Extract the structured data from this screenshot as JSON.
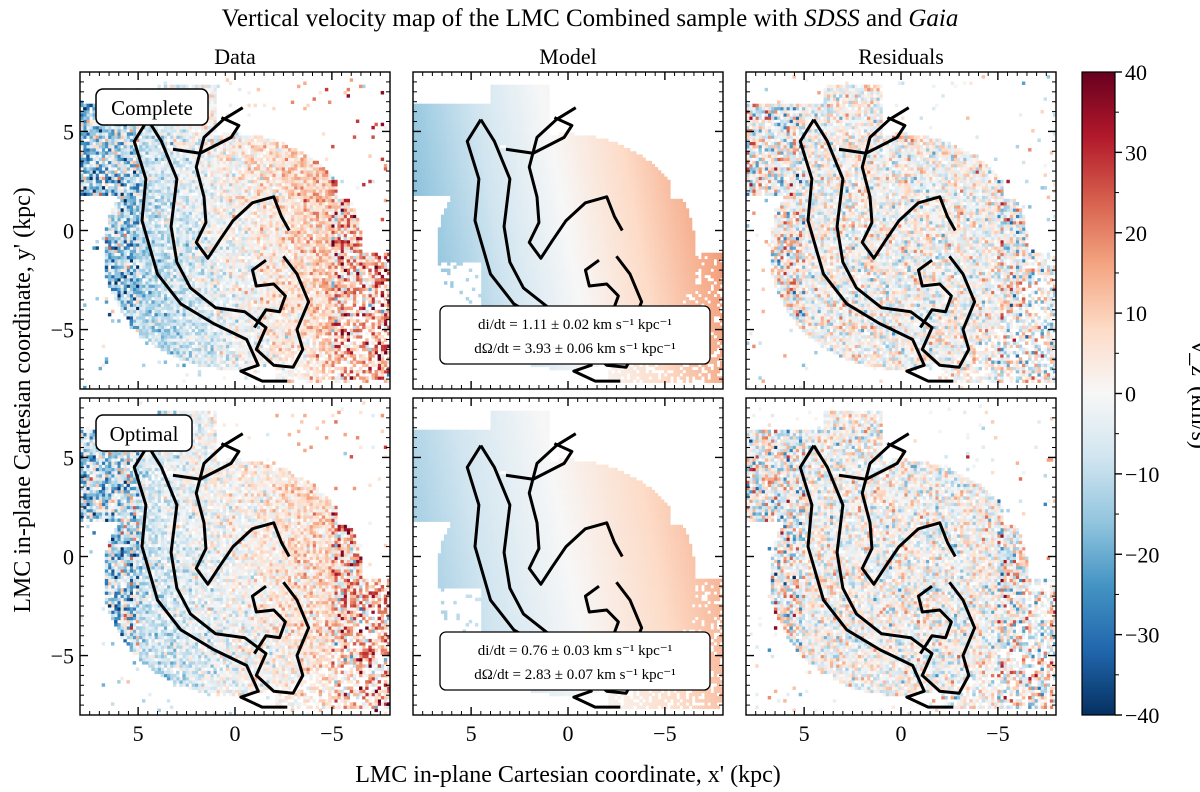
{
  "chart_data": {
    "type": "heatmap",
    "title_prefix": "Vertical velocity map of the LMC Combined sample with ",
    "title_sdss": "SDSS",
    "title_and": " and ",
    "title_gaia": "Gaia",
    "column_titles": [
      "Data",
      "Model",
      "Residuals"
    ],
    "row_tags": [
      "Complete",
      "Optimal"
    ],
    "xlabel": "LMC in-plane Cartesian coordinate, x' (kpc)",
    "ylabel": "LMC in-plane Cartesian coordinate, y' (kpc)",
    "xlim": [
      8,
      -8
    ],
    "ylim": [
      8,
      -8
    ],
    "x_ticks": [
      5,
      0,
      -5
    ],
    "y_ticks": [
      -5,
      0,
      5
    ],
    "x_tick_labels": [
      "5",
      "0",
      "−5"
    ],
    "y_tick_labels": [
      "−5",
      "0",
      "5"
    ],
    "colorbar": {
      "label": "v_z' (km/s)",
      "range": [
        -40,
        40
      ],
      "ticks": [
        40,
        30,
        20,
        10,
        0,
        -10,
        -20,
        -30,
        -40
      ],
      "tick_labels": [
        "40",
        "30",
        "20",
        "10",
        "0",
        "−10",
        "−20",
        "−30",
        "−40"
      ],
      "colormap": "RdBu_r",
      "colors": [
        "#053061",
        "#2166ac",
        "#4393c3",
        "#92c5de",
        "#d1e5f0",
        "#f7f7f7",
        "#fddbc7",
        "#f4a582",
        "#d6604d",
        "#b2182b",
        "#67001f"
      ]
    },
    "model_annotations": [
      {
        "row": "Complete",
        "di_dt_label": "di/dt = 1.11 ± 0.02 km s⁻¹ kpc⁻¹",
        "domega_dt_label": "dΩ/dt = 3.93 ± 0.06 km s⁻¹ kpc⁻¹",
        "di_dt": 1.11,
        "di_dt_err": 0.02,
        "domega_dt": 3.93,
        "domega_dt_err": 0.06
      },
      {
        "row": "Optimal",
        "di_dt_label": "di/dt = 0.76 ± 0.03 km s⁻¹ kpc⁻¹",
        "domega_dt_label": "dΩ/dt = 2.83 ± 0.07 km s⁻¹ kpc⁻¹",
        "di_dt": 0.76,
        "di_dt_err": 0.03,
        "domega_dt": 2.83,
        "domega_dt_err": 0.07
      }
    ]
  }
}
